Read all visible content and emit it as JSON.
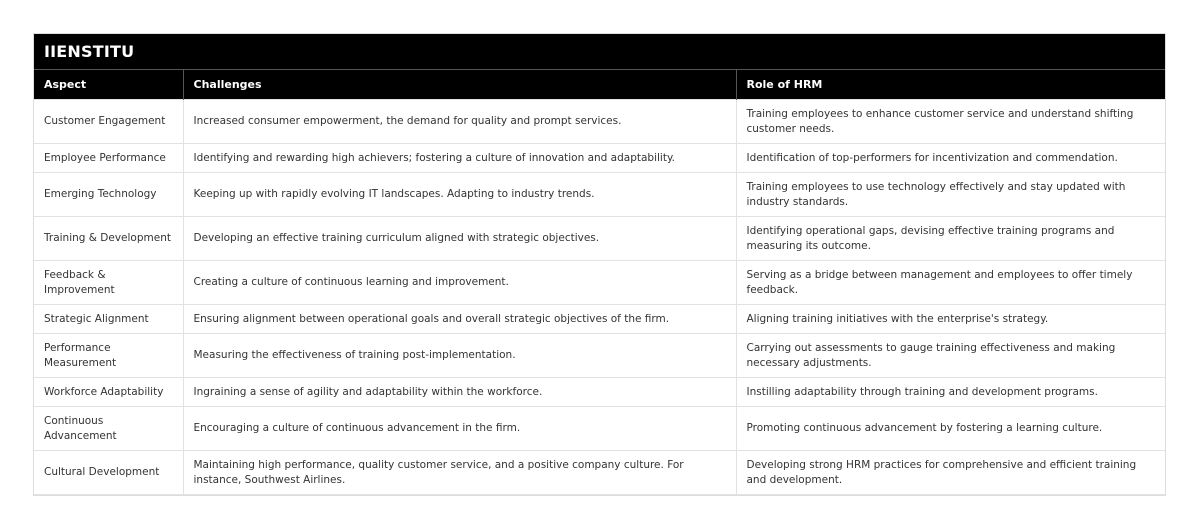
{
  "title": "IIENSTITU",
  "columns": [
    "Aspect",
    "Challenges",
    "Role of HRM"
  ],
  "rows": [
    [
      "Customer Engagement",
      "Increased consumer empowerment, the demand for quality and prompt services.",
      "Training employees to enhance customer service and understand shifting customer needs."
    ],
    [
      "Employee Performance",
      "Identifying and rewarding high achievers; fostering a culture of innovation and adaptability.",
      "Identification of top-performers for incentivization and commendation."
    ],
    [
      "Emerging Technology",
      "Keeping up with rapidly evolving IT landscapes. Adapting to industry trends.",
      "Training employees to use technology effectively and stay updated with industry standards."
    ],
    [
      "Training & Development",
      "Developing an effective training curriculum aligned with strategic objectives.",
      "Identifying operational gaps, devising effective training programs and measuring its outcome."
    ],
    [
      "Feedback & Improvement",
      "Creating a culture of continuous learning and improvement.",
      "Serving as a bridge between management and employees to offer timely feedback."
    ],
    [
      "Strategic Alignment",
      "Ensuring alignment between operational goals and overall strategic objectives of the firm.",
      "Aligning training initiatives with the enterprise's strategy."
    ],
    [
      "Performance Measurement",
      "Measuring the effectiveness of training post-implementation.",
      "Carrying out assessments to gauge training effectiveness and making necessary adjustments."
    ],
    [
      "Workforce Adaptability",
      "Ingraining a sense of agility and adaptability within the workforce.",
      "Instilling adaptability through training and development programs."
    ],
    [
      "Continuous Advancement",
      "Encouraging a culture of continuous advancement in the firm.",
      "Promoting continuous advancement by fostering a learning culture."
    ],
    [
      "Cultural Development",
      "Maintaining high performance, quality customer service, and a positive company culture. For instance, Southwest Airlines.",
      "Developing strong HRM practices for comprehensive and efficient training and development."
    ]
  ]
}
